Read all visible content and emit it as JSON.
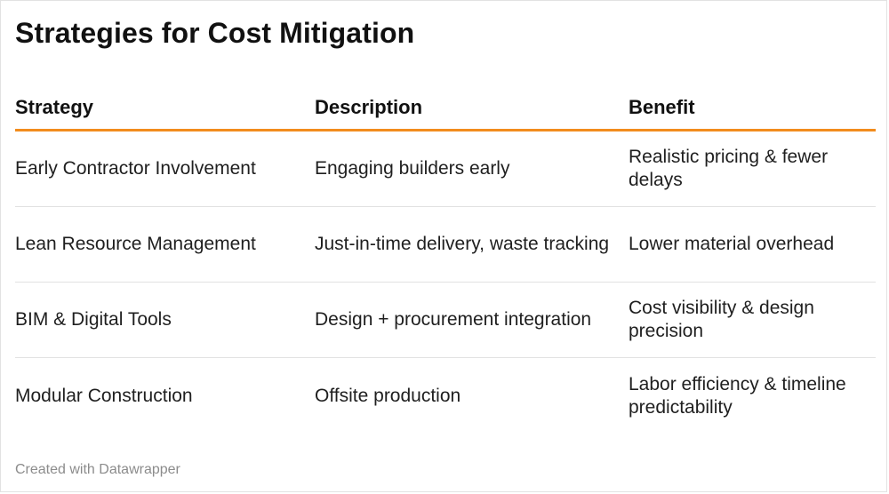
{
  "title": "Strategies for Cost Mitigation",
  "columns": [
    "Strategy",
    "Description",
    "Benefit"
  ],
  "rows": [
    [
      "Early Contractor Involvement",
      "Engaging builders early",
      "Realistic pricing & fewer delays"
    ],
    [
      "Lean Resource Management",
      "Just-in-time delivery, waste tracking",
      "Lower material overhead"
    ],
    [
      "BIM & Digital Tools",
      "Design + procurement integration",
      "Cost visibility & design precision"
    ],
    [
      "Modular Construction",
      "Offsite production",
      "Labor efficiency & timeline predictability"
    ]
  ],
  "footer": "Created with Datawrapper",
  "colors": {
    "header_rule": "#f28c1d",
    "row_divider": "#e2e2e2",
    "footer_text": "#8c8c8c"
  }
}
